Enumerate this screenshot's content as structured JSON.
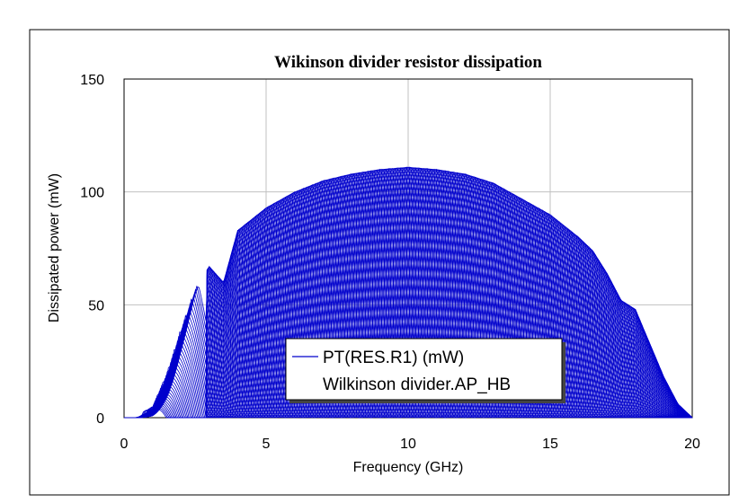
{
  "chart_data": {
    "type": "line",
    "title": "Wikinson divider resistor dissipation",
    "xlabel": "Frequency (GHz)",
    "ylabel": "Dissipated power (mW)",
    "xlim": [
      0,
      20
    ],
    "ylim": [
      0,
      150
    ],
    "x_ticks": [
      "0",
      "5",
      "10",
      "15",
      "20"
    ],
    "y_ticks": [
      "0",
      "50",
      "100",
      "150"
    ],
    "grid": true,
    "legend": {
      "placement": "bottom-center",
      "entry_label": "PT(RES.R1) (mW)",
      "entry_source": "Wilkinson divider.AP_HB"
    },
    "series_color": "#0000cc",
    "series": [
      {
        "name": "PT(RES.R1) (mW)",
        "description_points": {
          "envelope_x": [
            0.3,
            1.0,
            1.5,
            2.0,
            2.5,
            3.0,
            3.5,
            4.0,
            5.0,
            6.0,
            7.0,
            8.0,
            9.0,
            10.0,
            11.0,
            12.0,
            13.0,
            14.0,
            15.0,
            16.0,
            16.5,
            17.0,
            17.5,
            18.0,
            18.5,
            19.0,
            19.5,
            20.0
          ],
          "envelope_y": [
            0,
            5,
            20,
            40,
            58,
            67,
            60,
            83,
            93,
            100,
            105,
            108,
            110,
            111,
            110,
            108,
            104,
            97,
            90,
            80,
            74,
            64,
            52,
            48,
            33,
            18,
            6,
            0
          ]
        }
      }
    ],
    "num_traces": 40
  }
}
